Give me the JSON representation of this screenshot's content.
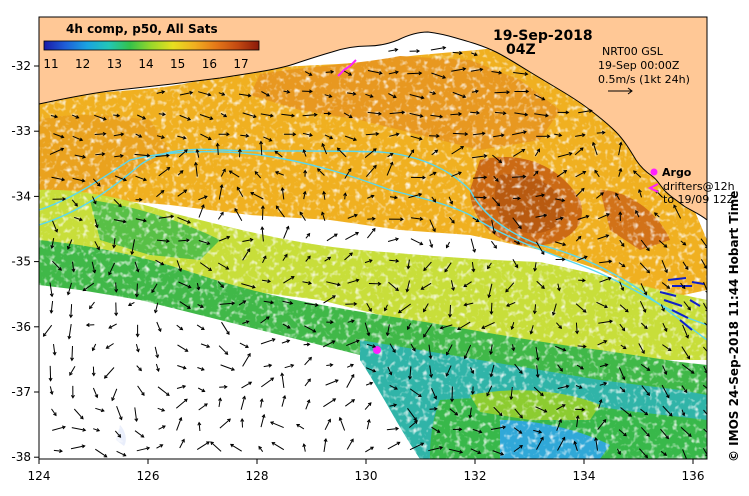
{
  "colorbar": {
    "title": "4h comp, p50, All Sats",
    "ticks": [
      "11",
      "12",
      "13",
      "14",
      "15",
      "16",
      "17"
    ],
    "colors": [
      "#1a1aa8",
      "#1e5fd8",
      "#1aa3e0",
      "#22c6b8",
      "#34c24a",
      "#9ad82a",
      "#e8e020",
      "#f0b020",
      "#e57818",
      "#c44a12",
      "#8a1a0a"
    ]
  },
  "header": {
    "date": "19-Sep-2018",
    "time": "04Z"
  },
  "current_info": {
    "line1": "NRT00 GSL",
    "line2": "19-Sep 00:00Z",
    "line3": "0.5m/s (1kt 24h)"
  },
  "legend": {
    "argo": "Argo",
    "drifters_line1": "drifters@12h",
    "drifters_line2": "to 19/09 12Z"
  },
  "axes": {
    "x_ticks": [
      "124",
      "126",
      "128",
      "130",
      "132",
      "134",
      "136"
    ],
    "y_ticks": [
      "-32",
      "-33",
      "-34",
      "-35",
      "-36",
      "-37",
      "-38"
    ]
  },
  "side_label": "© IMOS 24-Sep-2018 11:44 Hobart Time",
  "style": {
    "land": "#ffc896",
    "coast": "#000000",
    "isobath": "#5ad8f0",
    "argo": "#ff20ff",
    "drifters": "#1020c8"
  }
}
